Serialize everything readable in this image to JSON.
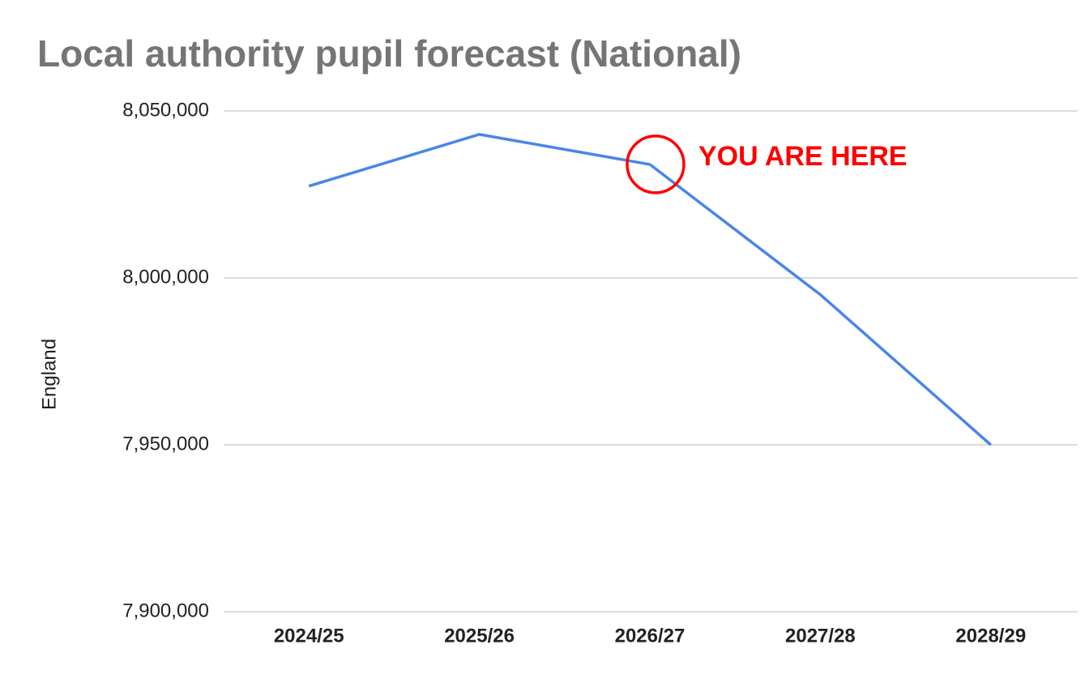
{
  "chart_data": {
    "type": "line",
    "title": "Local authority pupil forecast (National)",
    "y_label": "England",
    "categories": [
      "2024/25",
      "2025/26",
      "2026/27",
      "2027/28",
      "2028/29"
    ],
    "series": [
      {
        "name": "England",
        "color": "#4a86e8",
        "values": [
          8027500,
          8043000,
          8034000,
          7995000,
          7950000
        ]
      }
    ],
    "ylim": [
      7900000,
      8050000
    ],
    "yticks": [
      {
        "value": 7900000,
        "label": "7,900,000"
      },
      {
        "value": 7950000,
        "label": "7,950,000"
      },
      {
        "value": 8000000,
        "label": "8,000,000"
      },
      {
        "value": 8050000,
        "label": "8,050,000"
      }
    ],
    "grid": true,
    "annotation": {
      "text": "YOU ARE HERE",
      "x": "2026/27",
      "color": "#ff0000"
    }
  }
}
